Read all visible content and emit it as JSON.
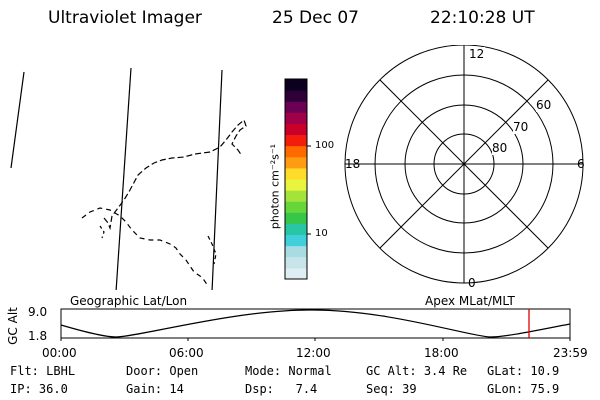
{
  "header": {
    "instrument": "Ultraviolet Imager",
    "date": "25 Dec 07",
    "time": "22:10:28 UT"
  },
  "colorbar": {
    "label": "photon cm⁻²s⁻¹",
    "ticks": [
      "100",
      "10"
    ],
    "colors": [
      "#dfeef2",
      "#c7e4ea",
      "#a8dbe2",
      "#3fd0dc",
      "#29c6a6",
      "#36c64a",
      "#67d63a",
      "#a4e43a",
      "#e9f43e",
      "#ffdb2a",
      "#ff9c12",
      "#ff6a00",
      "#f21d0c",
      "#c8002a",
      "#a00048",
      "#6c0055",
      "#2e0037",
      "#0c001f"
    ]
  },
  "polar": {
    "mlt_labels": {
      "top": "12",
      "right": "6",
      "bottom": "0",
      "left": "18"
    },
    "lat_labels": [
      "60",
      "70",
      "80"
    ]
  },
  "map_labels": {
    "left": "Geographic Lat/Lon",
    "right": "Apex MLat/MLT"
  },
  "altitude_plot": {
    "ylabel": "GC Alt",
    "yticks": [
      "9.0",
      "1.8"
    ],
    "xticks": [
      "00:00",
      "06:00",
      "12:00",
      "18:00",
      "23:59"
    ],
    "current_time_color": "#e00000"
  },
  "info": {
    "row1": [
      {
        "label": "Flt:",
        "value": "LBHL"
      },
      {
        "label": "Door:",
        "value": "Open"
      },
      {
        "label": "Mode:",
        "value": "Normal"
      },
      {
        "label": "GC Alt:",
        "value": "3.4 Re"
      },
      {
        "label": "GLat:",
        "value": "10.9"
      }
    ],
    "row2": [
      {
        "label": "IP:",
        "value": "36.0"
      },
      {
        "label": "Gain:",
        "value": "14"
      },
      {
        "label": "Dsp:",
        "value": "7.4"
      },
      {
        "label": "Seq:",
        "value": "39"
      },
      {
        "label": "GLon:",
        "value": "75.9"
      }
    ]
  }
}
